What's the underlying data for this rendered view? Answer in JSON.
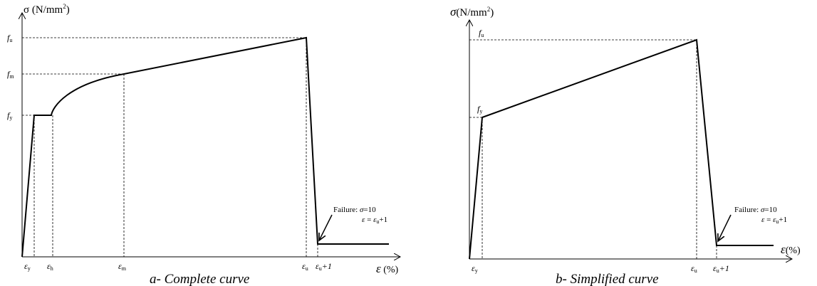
{
  "left": {
    "y_axis_symbol": "σ",
    "y_axis_unit": " (N/mm",
    "y_axis_unit_sup": "2",
    "y_axis_unit_close": ")",
    "x_axis_symbol": "ε",
    "x_axis_unit": " (%)",
    "y_ticks": {
      "fu": {
        "main": "f",
        "sub": "u"
      },
      "fm": {
        "main": "f",
        "sub": "m"
      },
      "fy": {
        "main": "f",
        "sub": "y"
      }
    },
    "x_ticks": {
      "ey": {
        "main": "ε",
        "sub": "y"
      },
      "eh": {
        "main": "ε",
        "sub": "h"
      },
      "em": {
        "main": "ε",
        "sub": "m"
      },
      "eu": {
        "main": "ε",
        "sub": "u"
      },
      "eu1": {
        "main": "ε",
        "sub": "u",
        "tail": "+1"
      }
    },
    "failure_line1": "Failure: ",
    "failure_sigma": "σ",
    "failure_sigma_val": "=10",
    "failure_line2_eps": "ε",
    "failure_line2_eq": " = ",
    "failure_line2_eps2": "ε",
    "failure_line2_sub": "u",
    "failure_line2_tail": "+1",
    "caption": "a-   Complete curve"
  },
  "right": {
    "y_axis_symbol": "σ",
    "y_axis_unit": "(N/mm",
    "y_axis_unit_sup": "2",
    "y_axis_unit_close": ")",
    "x_axis_symbol": "ε",
    "x_axis_unit": "(%)",
    "y_ticks": {
      "fu": {
        "main": "f",
        "sub": "u"
      },
      "fy": {
        "main": "f",
        "sub": "y"
      }
    },
    "x_ticks": {
      "ey": {
        "main": "ε",
        "sub": "y"
      },
      "eu": {
        "main": "ε",
        "sub": "u"
      },
      "eu1": {
        "main": "ε",
        "sub": "u",
        "tail": "+1"
      }
    },
    "failure_line1": "Failure: ",
    "failure_sigma": "σ",
    "failure_sigma_val": "=10",
    "failure_line2_eps": "ε",
    "failure_line2_eq": " = ",
    "failure_line2_eps2": "ε",
    "failure_line2_sub": "u",
    "failure_line2_tail": "+1",
    "caption": "b-   Simplified curve"
  }
}
